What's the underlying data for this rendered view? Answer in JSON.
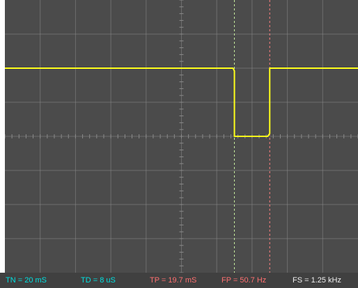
{
  "colors": {
    "screen_background": "#4b4b4b",
    "grid": "#8a8a8a",
    "trace": "#ffff1a",
    "cursor_1": "#c8f0a0",
    "cursor_2": "#ff8080",
    "status_background": "#404040"
  },
  "status": {
    "tn": {
      "text": "TN = 20 mS",
      "color": "#00e0e0"
    },
    "td": {
      "text": "TD = 8 uS",
      "color": "#00e0e0"
    },
    "tp": {
      "text": "TP = 19.7 mS",
      "color": "#ff7070"
    },
    "fp": {
      "text": "FP = 50.7 Hz",
      "color": "#ff7070"
    },
    "fs": {
      "text": "FS = 1.25 kHz",
      "color": "#f0f0f0"
    }
  },
  "trace": {
    "shape": "negative rectangular pulse",
    "high_level_divisions": 2,
    "low_level_divisions": 0,
    "pulse_start_division": 6.5,
    "pulse_end_division": 7.5
  },
  "cursors": {
    "cursor_1_division": 6.5,
    "cursor_2_division": 7.5
  }
}
